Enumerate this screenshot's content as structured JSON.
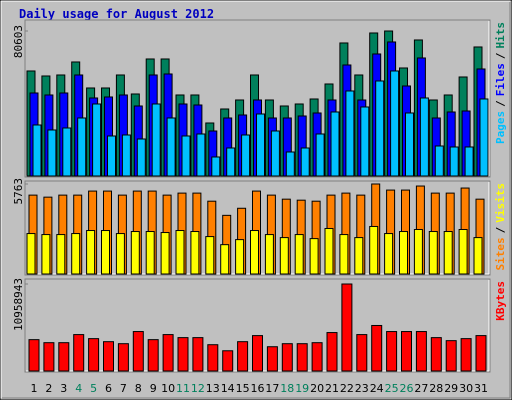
{
  "title": "Daily usage for August 2012",
  "separator": "/",
  "chart_data": [
    {
      "type": "bar",
      "series": [
        {
          "name": "Pages",
          "color": "#00c0ff",
          "values": [
            28356,
            25576,
            26688,
            32248,
            40032,
            22240,
            22796,
            20572,
            40032,
            32248,
            22240,
            23352,
            10564,
            15568,
            22796,
            34472,
            25020,
            13344,
            15568,
            23352,
            35584,
            47260,
            38364,
            52820,
            58380,
            35028,
            43368,
            16680,
            16124,
            16124,
            42812
          ]
        },
        {
          "name": "Files",
          "color": "#0000ff",
          "values": [
            46148,
            45036,
            46148,
            56156,
            43368,
            43924,
            45036,
            38920,
            56156,
            56712,
            40032,
            39476,
            25020,
            32248,
            33916,
            42256,
            32248,
            32248,
            33360,
            35028,
            42256,
            61716,
            42256,
            67832,
            74504,
            50040,
            65608,
            32248,
            35584,
            36140,
            59492
          ]
        },
        {
          "name": "Hits",
          "color": "#00805c",
          "values": [
            58380,
            55600,
            56156,
            63384,
            48928,
            48928,
            56156,
            45592,
            65052,
            65052,
            45036,
            45036,
            29468,
            37252,
            42256,
            56156,
            42256,
            38920,
            40032,
            42812,
            51152,
            73948,
            56156,
            79500,
            80603,
            60048,
            75616,
            42256,
            45036,
            55044,
            71724
          ]
        }
      ],
      "ylim": [
        0,
        80603
      ],
      "yticks": [
        80603
      ]
    },
    {
      "type": "bar",
      "series": [
        {
          "name": "Sites",
          "color": "#ff8000",
          "values": [
            5051,
            4921,
            5051,
            5051,
            5310,
            5310,
            5051,
            5310,
            5310,
            5051,
            5180,
            5180,
            4662,
            3756,
            4209,
            5310,
            5051,
            4792,
            4727,
            4662,
            5051,
            5180,
            5051,
            5763,
            5374,
            5374,
            5633,
            5180,
            5180,
            5504,
            4792
          ]
        },
        {
          "name": "Visits",
          "color": "#ffff00",
          "values": [
            2590,
            2525,
            2525,
            2590,
            2784,
            2784,
            2590,
            2720,
            2720,
            2655,
            2784,
            2720,
            2396,
            1878,
            2202,
            2784,
            2525,
            2331,
            2525,
            2266,
            2914,
            2525,
            2331,
            3043,
            2590,
            2720,
            2849,
            2720,
            2720,
            2849,
            2331
          ]
        }
      ],
      "ylim": [
        0,
        5763
      ],
      "yticks": [
        5763
      ]
    },
    {
      "type": "bar",
      "categories": [
        "1",
        "2",
        "3",
        "4",
        "5",
        "6",
        "7",
        "8",
        "9",
        "10",
        "11",
        "12",
        "13",
        "14",
        "15",
        "16",
        "17",
        "18",
        "19",
        "20",
        "21",
        "22",
        "23",
        "24",
        "25",
        "26",
        "27",
        "28",
        "29",
        "30",
        "31"
      ],
      "category_colors": [
        "#000000",
        "#000000",
        "#000000",
        "#00805c",
        "#00805c",
        "#000000",
        "#000000",
        "#000000",
        "#000000",
        "#000000",
        "#00805c",
        "#00805c",
        "#000000",
        "#000000",
        "#000000",
        "#000000",
        "#000000",
        "#00805c",
        "#00805c",
        "#000000",
        "#000000",
        "#000000",
        "#000000",
        "#000000",
        "#00805c",
        "#00805c",
        "#000000",
        "#000000",
        "#000000",
        "#000000",
        "#000000"
      ],
      "series": [
        {
          "name": "KBytes",
          "color": "#ff0000",
          "values": [
            3950000,
            3568000,
            3568000,
            4587000,
            4078000,
            3695000,
            3441000,
            4970000,
            3950000,
            4587000,
            4205000,
            4205000,
            3313000,
            2549000,
            3695000,
            4460000,
            3058000,
            3441000,
            3441000,
            3568000,
            4842000,
            10958943,
            4587000,
            5734000,
            4970000,
            4970000,
            4970000,
            4205000,
            3823000,
            4078000,
            4460000
          ]
        }
      ],
      "ylim": [
        0,
        10958943
      ],
      "yticks": [
        10958943
      ]
    }
  ]
}
